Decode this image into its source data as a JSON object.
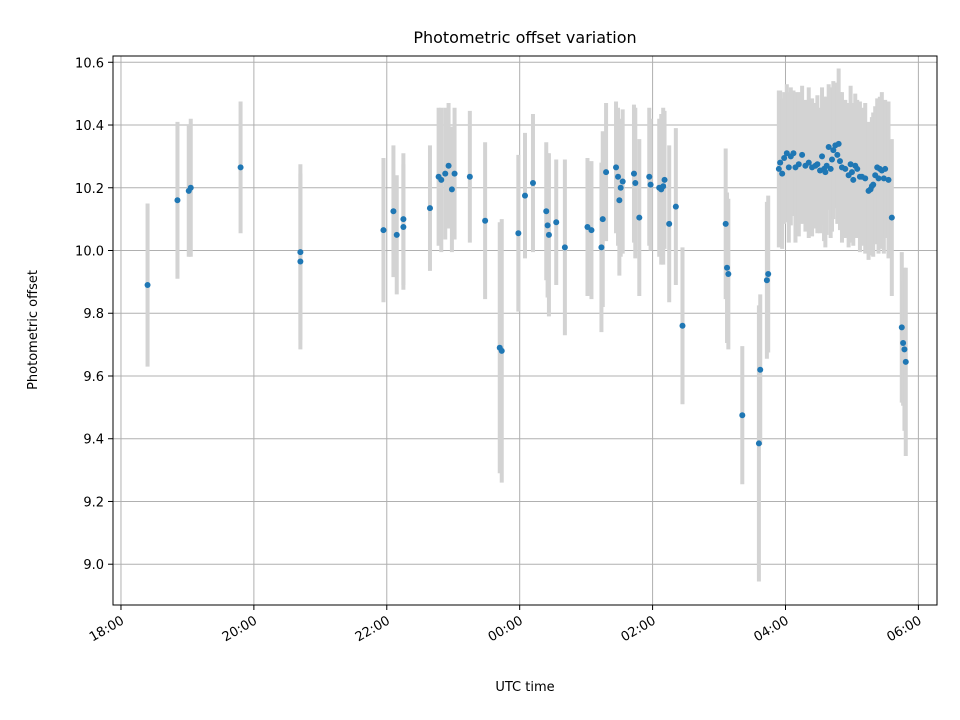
{
  "chart_data": {
    "type": "scatter",
    "title": "Photometric offset variation",
    "xlabel": "UTC time",
    "ylabel": "Photometric offset",
    "x_unit": "hours since 00:00 UTC (negative = previous day)",
    "xlim": [
      -6.12,
      6.28
    ],
    "ylim": [
      8.87,
      10.62
    ],
    "xticks": [
      -6,
      -4,
      -2,
      0,
      2,
      4,
      6
    ],
    "xtick_labels": [
      "18:00",
      "20:00",
      "22:00",
      "00:00",
      "02:00",
      "04:00",
      "06:00"
    ],
    "yticks": [
      9.0,
      9.2,
      9.4,
      9.6,
      9.8,
      10.0,
      10.2,
      10.4,
      10.6
    ],
    "ytick_labels": [
      "9.0",
      "9.2",
      "9.4",
      "9.6",
      "9.8",
      "10.0",
      "10.2",
      "10.4",
      "10.6"
    ],
    "grid": true,
    "colors": {
      "points": "#1f77b4",
      "errorbars": "#d3d3d3",
      "grid": "#b0b0b0",
      "axes": "#000000"
    },
    "series": [
      {
        "name": "offset",
        "points": [
          [
            -5.6,
            9.89,
            0.26
          ],
          [
            -5.15,
            10.16,
            0.25
          ],
          [
            -4.98,
            10.19,
            0.21
          ],
          [
            -4.95,
            10.2,
            0.22
          ],
          [
            -4.2,
            10.265,
            0.21
          ],
          [
            -3.3,
            9.995,
            0.28
          ],
          [
            -3.3,
            9.965,
            0.28
          ],
          [
            -2.05,
            10.065,
            0.23
          ],
          [
            -1.9,
            10.125,
            0.21
          ],
          [
            -1.85,
            10.05,
            0.19
          ],
          [
            -1.75,
            10.075,
            0.2
          ],
          [
            -1.75,
            10.1,
            0.21
          ],
          [
            -1.35,
            10.135,
            0.2
          ],
          [
            -1.22,
            10.235,
            0.22
          ],
          [
            -1.18,
            10.225,
            0.23
          ],
          [
            -1.12,
            10.245,
            0.21
          ],
          [
            -1.07,
            10.27,
            0.2
          ],
          [
            -1.02,
            10.195,
            0.2
          ],
          [
            -0.98,
            10.245,
            0.21
          ],
          [
            -0.75,
            10.235,
            0.21
          ],
          [
            -0.52,
            10.095,
            0.25
          ],
          [
            -0.3,
            9.69,
            0.4
          ],
          [
            -0.27,
            9.68,
            0.42
          ],
          [
            -0.02,
            10.055,
            0.25
          ],
          [
            0.08,
            10.175,
            0.2
          ],
          [
            0.2,
            10.215,
            0.22
          ],
          [
            0.4,
            10.125,
            0.22
          ],
          [
            0.42,
            10.08,
            0.23
          ],
          [
            0.44,
            10.05,
            0.26
          ],
          [
            0.55,
            10.09,
            0.2
          ],
          [
            0.68,
            10.01,
            0.28
          ],
          [
            1.02,
            10.075,
            0.22
          ],
          [
            1.08,
            10.065,
            0.22
          ],
          [
            1.23,
            10.01,
            0.27
          ],
          [
            1.25,
            10.1,
            0.28
          ],
          [
            1.3,
            10.25,
            0.22
          ],
          [
            1.45,
            10.265,
            0.21
          ],
          [
            1.48,
            10.235,
            0.22
          ],
          [
            1.5,
            10.16,
            0.24
          ],
          [
            1.52,
            10.2,
            0.22
          ],
          [
            1.55,
            10.22,
            0.23
          ],
          [
            1.72,
            10.245,
            0.22
          ],
          [
            1.74,
            10.215,
            0.24
          ],
          [
            1.8,
            10.105,
            0.25
          ],
          [
            1.95,
            10.235,
            0.22
          ],
          [
            1.97,
            10.21,
            0.21
          ],
          [
            2.1,
            10.2,
            0.22
          ],
          [
            2.13,
            10.195,
            0.24
          ],
          [
            2.16,
            10.205,
            0.25
          ],
          [
            2.18,
            10.225,
            0.22
          ],
          [
            2.25,
            10.085,
            0.25
          ],
          [
            2.35,
            10.14,
            0.25
          ],
          [
            2.45,
            9.76,
            0.25
          ],
          [
            3.1,
            10.085,
            0.24
          ],
          [
            3.12,
            9.945,
            0.24
          ],
          [
            3.14,
            9.925,
            0.24
          ],
          [
            3.35,
            9.475,
            0.22
          ],
          [
            3.6,
            9.385,
            0.44
          ],
          [
            3.62,
            9.62,
            0.24
          ],
          [
            3.72,
            9.905,
            0.25
          ],
          [
            3.74,
            9.925,
            0.25
          ],
          [
            3.9,
            10.26,
            0.25
          ],
          [
            3.92,
            10.28,
            0.23
          ],
          [
            3.95,
            10.245,
            0.24
          ],
          [
            3.98,
            10.295,
            0.21
          ],
          [
            4.02,
            10.31,
            0.22
          ],
          [
            4.05,
            10.265,
            0.24
          ],
          [
            4.08,
            10.3,
            0.22
          ],
          [
            4.12,
            10.31,
            0.2
          ],
          [
            4.15,
            10.265,
            0.24
          ],
          [
            4.2,
            10.275,
            0.23
          ],
          [
            4.25,
            10.305,
            0.22
          ],
          [
            4.3,
            10.27,
            0.21
          ],
          [
            4.35,
            10.28,
            0.24
          ],
          [
            4.4,
            10.265,
            0.22
          ],
          [
            4.45,
            10.27,
            0.2
          ],
          [
            4.48,
            10.275,
            0.22
          ],
          [
            4.52,
            10.255,
            0.2
          ],
          [
            4.55,
            10.3,
            0.22
          ],
          [
            4.58,
            10.26,
            0.23
          ],
          [
            4.6,
            10.25,
            0.24
          ],
          [
            4.62,
            10.27,
            0.22
          ],
          [
            4.65,
            10.33,
            0.2
          ],
          [
            4.68,
            10.26,
            0.22
          ],
          [
            4.7,
            10.29,
            0.23
          ],
          [
            4.72,
            10.32,
            0.22
          ],
          [
            4.75,
            10.335,
            0.2
          ],
          [
            4.78,
            10.305,
            0.22
          ],
          [
            4.8,
            10.34,
            0.24
          ],
          [
            4.82,
            10.285,
            0.22
          ],
          [
            4.85,
            10.265,
            0.24
          ],
          [
            4.9,
            10.26,
            0.22
          ],
          [
            4.95,
            10.24,
            0.23
          ],
          [
            4.98,
            10.275,
            0.25
          ],
          [
            5.0,
            10.25,
            0.22
          ],
          [
            5.02,
            10.225,
            0.21
          ],
          [
            5.05,
            10.27,
            0.23
          ],
          [
            5.08,
            10.26,
            0.22
          ],
          [
            5.12,
            10.235,
            0.24
          ],
          [
            5.15,
            10.235,
            0.22
          ],
          [
            5.2,
            10.23,
            0.24
          ],
          [
            5.25,
            10.19,
            0.22
          ],
          [
            5.28,
            10.195,
            0.21
          ],
          [
            5.3,
            10.205,
            0.22
          ],
          [
            5.32,
            10.21,
            0.23
          ],
          [
            5.35,
            10.24,
            0.22
          ],
          [
            5.38,
            10.265,
            0.22
          ],
          [
            5.4,
            10.23,
            0.24
          ],
          [
            5.42,
            10.26,
            0.23
          ],
          [
            5.45,
            10.255,
            0.25
          ],
          [
            5.48,
            10.23,
            0.24
          ],
          [
            5.5,
            10.26,
            0.22
          ],
          [
            5.55,
            10.225,
            0.25
          ],
          [
            5.6,
            10.105,
            0.25
          ],
          [
            5.75,
            9.755,
            0.24
          ],
          [
            5.77,
            9.705,
            0.2
          ],
          [
            5.79,
            9.685,
            0.26
          ],
          [
            5.81,
            9.645,
            0.3
          ]
        ]
      }
    ]
  }
}
